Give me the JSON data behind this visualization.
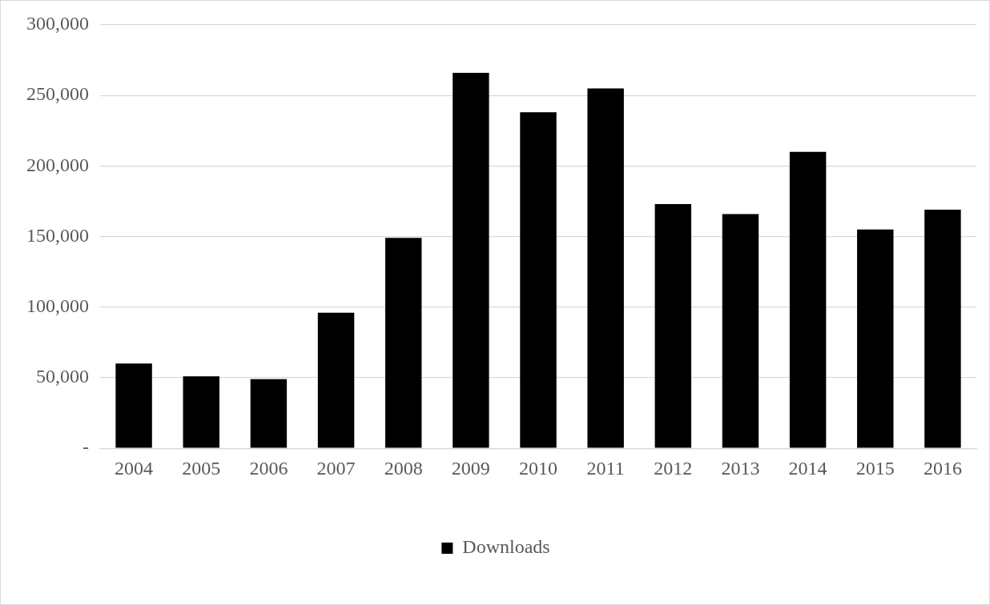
{
  "chart_data": {
    "type": "bar",
    "categories": [
      "2004",
      "2005",
      "2006",
      "2007",
      "2008",
      "2009",
      "2010",
      "2011",
      "2012",
      "2013",
      "2014",
      "2015",
      "2016"
    ],
    "series": [
      {
        "name": "Downloads",
        "color": "#000000",
        "values": [
          60000,
          51000,
          49000,
          96000,
          149000,
          266000,
          238000,
          255000,
          173000,
          166000,
          210000,
          155000,
          169000
        ]
      }
    ],
    "ylim": [
      0,
      300000
    ],
    "yticks": [
      {
        "value": 0,
        "label": "-"
      },
      {
        "value": 50000,
        "label": "50,000"
      },
      {
        "value": 100000,
        "label": "100,000"
      },
      {
        "value": 150000,
        "label": "150,000"
      },
      {
        "value": 200000,
        "label": "200,000"
      },
      {
        "value": 250000,
        "label": "250,000"
      },
      {
        "value": 300000,
        "label": "300,000"
      }
    ],
    "grid": "y",
    "legend": "bottom"
  }
}
